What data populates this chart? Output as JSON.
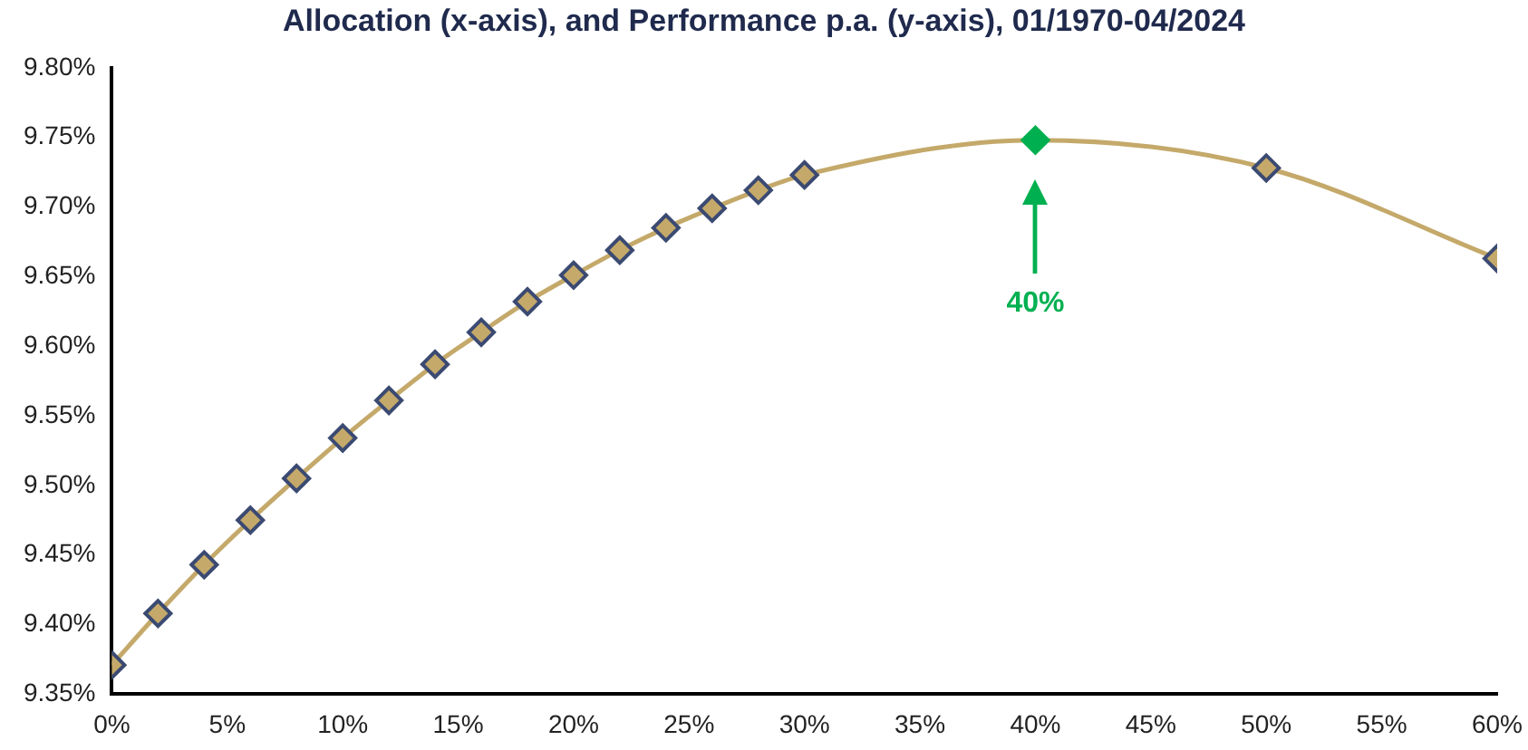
{
  "chart_data": {
    "type": "line",
    "title": "Allocation (x-axis), and Performance p.a. (y-axis), 01/1970-04/2024",
    "x": [
      0,
      2,
      4,
      6,
      8,
      10,
      12,
      14,
      16,
      18,
      20,
      22,
      24,
      26,
      28,
      30,
      40,
      50,
      60
    ],
    "series": [
      {
        "color": "#c4a96a",
        "colors": [
          "#c4a96a",
          "#c4a96a",
          "#c4a96a",
          "#c4a96a",
          "#c4a96a",
          "#c4a96a",
          "#c4a96a",
          "#c4a96a",
          "#c4a96a",
          "#c4a96a",
          "#c4a96a",
          "#c4a96a",
          "#c4a96a",
          "#c4a96a",
          "#c4a96a",
          "#c4a96a",
          "#00b050",
          "#c4a96a",
          "#c4a96a"
        ],
        "values": [
          9.371,
          9.408,
          9.443,
          9.475,
          9.505,
          9.534,
          9.561,
          9.587,
          9.61,
          9.632,
          9.651,
          9.669,
          9.685,
          9.699,
          9.712,
          9.723,
          9.748,
          9.728,
          9.663
        ]
      }
    ],
    "xlim": [
      0,
      60
    ],
    "xticks": [
      {
        "value": 0,
        "label": "0%"
      },
      {
        "value": 5,
        "label": "5%"
      },
      {
        "value": 10,
        "label": "10%"
      },
      {
        "value": 15,
        "label": "15%"
      },
      {
        "value": 20,
        "label": "20%"
      },
      {
        "value": 25,
        "label": "25%"
      },
      {
        "value": 30,
        "label": "30%"
      },
      {
        "value": 35,
        "label": "35%"
      },
      {
        "value": 40,
        "label": "40%"
      },
      {
        "value": 45,
        "label": "45%"
      },
      {
        "value": 50,
        "label": "50%"
      },
      {
        "value": 55,
        "label": "55%"
      },
      {
        "value": 60,
        "label": "60%"
      }
    ],
    "ylim": [
      9.35,
      9.8
    ],
    "yticks": [
      {
        "value": 9.35,
        "label": "9.35%"
      },
      {
        "value": 9.4,
        "label": "9.40%"
      },
      {
        "value": 9.45,
        "label": "9.45%"
      },
      {
        "value": 9.5,
        "label": "9.50%"
      },
      {
        "value": 9.55,
        "label": "9.55%"
      },
      {
        "value": 9.6,
        "label": "9.60%"
      },
      {
        "value": 9.65,
        "label": "9.65%"
      },
      {
        "value": 9.7,
        "label": "9.70%"
      },
      {
        "value": 9.75,
        "label": "9.75%"
      },
      {
        "value": 9.8,
        "label": "9.80%"
      }
    ],
    "annotations": [
      "40%"
    ],
    "grid": false,
    "legend": false,
    "marker": "diamond",
    "line_style": "solid"
  }
}
